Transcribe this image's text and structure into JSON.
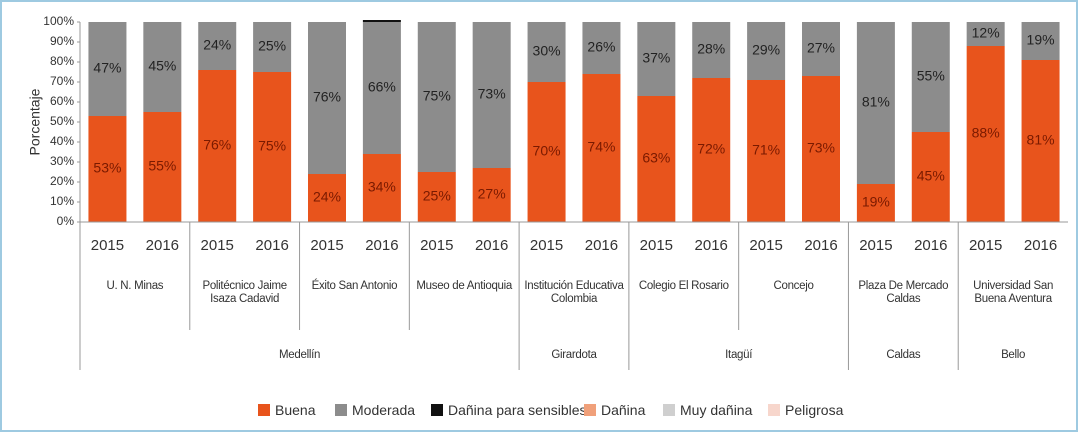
{
  "chart_data": {
    "type": "bar",
    "stacked": true,
    "y_label": "Porcentaje",
    "categories": [
      "2015",
      "2016",
      "2015",
      "2016",
      "2015",
      "2016",
      "2015",
      "2016",
      "2015",
      "2016",
      "2015",
      "2016",
      "2015",
      "2016",
      "2015",
      "2016",
      "2015",
      "2016"
    ],
    "stations": [
      "U. N. Minas",
      "Politécnico Jaime Isaza Cadavid",
      "Éxito San Antonio",
      "Museo de Antioquia",
      "Institución Educativa Colombia",
      "Colegio El Rosario",
      "Concejo",
      "Plaza De Mercado Caldas",
      "Universidad San Buena Aventura"
    ],
    "municipalities": [
      "Medellín",
      null,
      null,
      null,
      "Girardota",
      "Itagüí",
      null,
      "Caldas",
      "Bello"
    ],
    "series": [
      {
        "name": "Buena",
        "color": "#e8541c",
        "values": [
          53,
          55,
          76,
          75,
          24,
          34,
          25,
          27,
          70,
          74,
          63,
          72,
          71,
          73,
          19,
          45,
          88,
          81
        ],
        "value_labels": [
          "53%",
          "55%",
          "76%",
          "75%",
          "24%",
          "34%",
          "25%",
          "27%",
          "70%",
          "74%",
          "63%",
          "72%",
          "71%",
          "73%",
          "19%",
          "45%",
          "88%",
          "81%"
        ]
      },
      {
        "name": "Moderada",
        "color": "#8c8c8c",
        "values": [
          47,
          45,
          24,
          25,
          76,
          66,
          75,
          73,
          30,
          26,
          37,
          28,
          29,
          27,
          81,
          55,
          12,
          19
        ],
        "value_labels": [
          "47%",
          "45%",
          "24%",
          "25%",
          "76%",
          "66%",
          "75%",
          "73%",
          "30%",
          "26%",
          "37%",
          "28%",
          "29%",
          "27%",
          "81%",
          "55%",
          "12%",
          "19%"
        ]
      },
      {
        "name": "Dañina para sensibles",
        "color": "#111111",
        "values": [
          0,
          0,
          0,
          0,
          0,
          1,
          0,
          0,
          0,
          0,
          0,
          0,
          0,
          0,
          0,
          0,
          0,
          0
        ]
      },
      {
        "name": "Dañina",
        "color": "#f0a07a",
        "values": [
          0,
          0,
          0,
          0,
          0,
          0,
          0,
          0,
          0,
          0,
          0,
          0,
          0,
          0,
          0,
          0,
          0,
          0
        ]
      },
      {
        "name": "Muy dañina",
        "color": "#cfcfcf",
        "values": [
          0,
          0,
          0,
          0,
          0,
          0,
          0,
          0,
          0,
          0,
          0,
          0,
          0,
          0,
          0,
          0,
          0,
          0
        ]
      },
      {
        "name": "Peligrosa",
        "color": "#f7d6cc",
        "values": [
          0,
          0,
          0,
          0,
          0,
          0,
          0,
          0,
          0,
          0,
          0,
          0,
          0,
          0,
          0,
          0,
          0,
          0
        ]
      }
    ],
    "ylim": [
      0,
      100
    ],
    "yticks": [
      {
        "value": 0,
        "label": "0%"
      },
      {
        "value": 10,
        "label": "10%"
      },
      {
        "value": 20,
        "label": "20%"
      },
      {
        "value": 30,
        "label": "30%"
      },
      {
        "value": 40,
        "label": "40%"
      },
      {
        "value": 50,
        "label": "50%"
      },
      {
        "value": 60,
        "label": "60%"
      },
      {
        "value": 70,
        "label": "70%"
      },
      {
        "value": 80,
        "label": "80%"
      },
      {
        "value": 90,
        "label": "90%"
      },
      {
        "value": 100,
        "label": "100%"
      }
    ],
    "legend": "bottom"
  }
}
